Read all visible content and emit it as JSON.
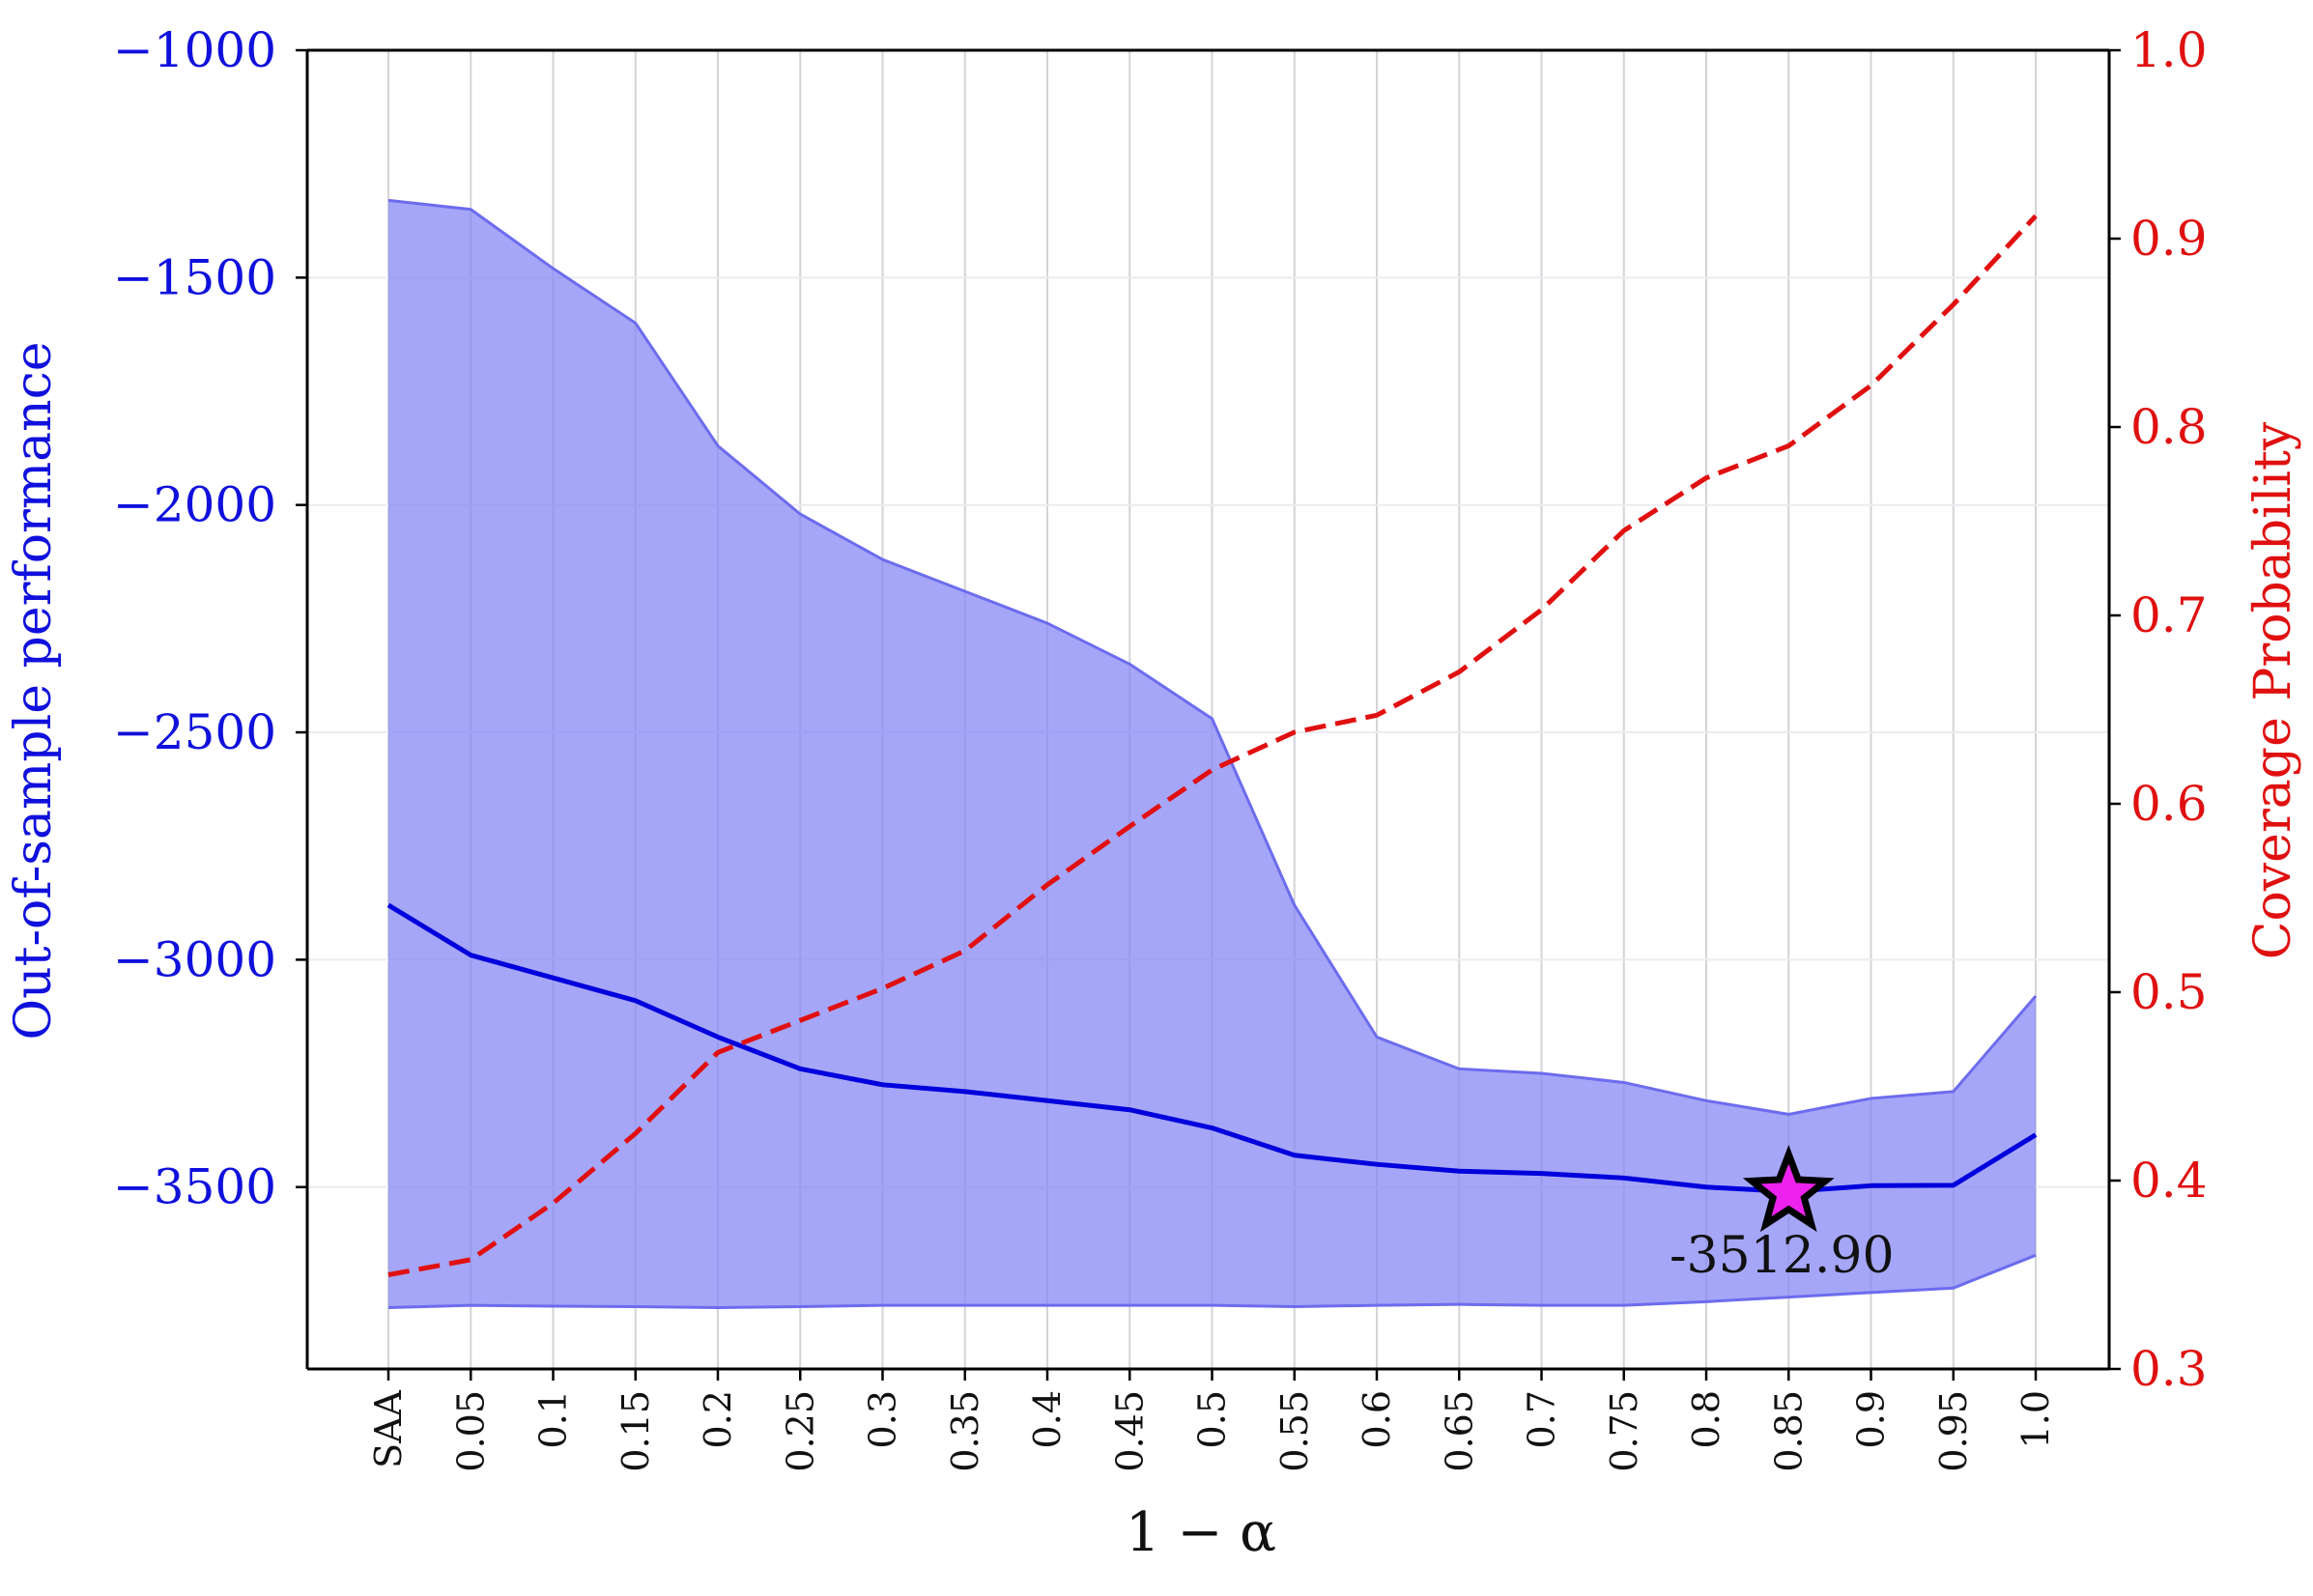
{
  "chart_data": {
    "type": "line",
    "categories": [
      "SAA",
      "0.05",
      "0.1",
      "0.15",
      "0.2",
      "0.25",
      "0.3",
      "0.35",
      "0.4",
      "0.45",
      "0.5",
      "0.55",
      "0.6",
      "0.65",
      "0.7",
      "0.75",
      "0.8",
      "0.85",
      "0.9",
      "0.95",
      "1.0"
    ],
    "xlabel": "1 − α",
    "ylabel_left": "Out-of-sample performance",
    "ylabel_right": "Coverage Probability",
    "ylim_left": [
      -3900,
      -1000
    ],
    "yticks_left": [
      -1000,
      -1500,
      -2000,
      -2500,
      -3000,
      -3500
    ],
    "ytick_labels_left": [
      "−1000",
      "−1500",
      "−2000",
      "−2500",
      "−3000",
      "−3500"
    ],
    "ylim_right": [
      0.3,
      1.0
    ],
    "yticks_right": [
      0.3,
      0.4,
      0.5,
      0.6,
      0.7,
      0.8,
      0.9,
      1.0
    ],
    "ytick_labels_right": [
      "0.3",
      "0.4",
      "0.5",
      "0.6",
      "0.7",
      "0.8",
      "0.9",
      "1.0"
    ],
    "grid": true,
    "series": [
      {
        "axis": "left",
        "style": "solid",
        "color": "#0000dd",
        "values": [
          -2880,
          -2990,
          -3040,
          -3090,
          -3170,
          -3240,
          -3275,
          -3290,
          -3310,
          -3330,
          -3370,
          -3430,
          -3450,
          -3465,
          -3470,
          -3480,
          -3500,
          -3510,
          -3497,
          -3496,
          -3385
        ]
      },
      {
        "axis": "left",
        "style": "band",
        "color": "#8888f5",
        "upper": [
          -1330,
          -1350,
          -1480,
          -1600,
          -1870,
          -2020,
          -2120,
          -2190,
          -2260,
          -2350,
          -2470,
          -2880,
          -3170,
          -3240,
          -3250,
          -3270,
          -3310,
          -3340,
          -3305,
          -3290,
          -3080
        ],
        "lower": [
          -3765,
          -3760,
          -3762,
          -3763,
          -3765,
          -3763,
          -3760,
          -3760,
          -3760,
          -3760,
          -3760,
          -3763,
          -3760,
          -3758,
          -3760,
          -3760,
          -3752,
          -3742,
          -3732,
          -3722,
          -3650
        ]
      },
      {
        "axis": "right",
        "style": "dashed",
        "color": "#e01010",
        "values": [
          0.35,
          0.358,
          0.388,
          0.425,
          0.468,
          0.485,
          0.502,
          0.522,
          0.557,
          0.588,
          0.618,
          0.638,
          0.647,
          0.67,
          0.703,
          0.745,
          0.773,
          0.79,
          0.822,
          0.865,
          0.912
        ]
      }
    ],
    "highlight": {
      "category": "0.85",
      "value": -3512.9,
      "label": "-3512.90",
      "marker": "star",
      "fill": "#ee22ee"
    },
    "colors": {
      "left_axis_text": "#1010dd",
      "right_axis_text": "#e01010"
    }
  }
}
